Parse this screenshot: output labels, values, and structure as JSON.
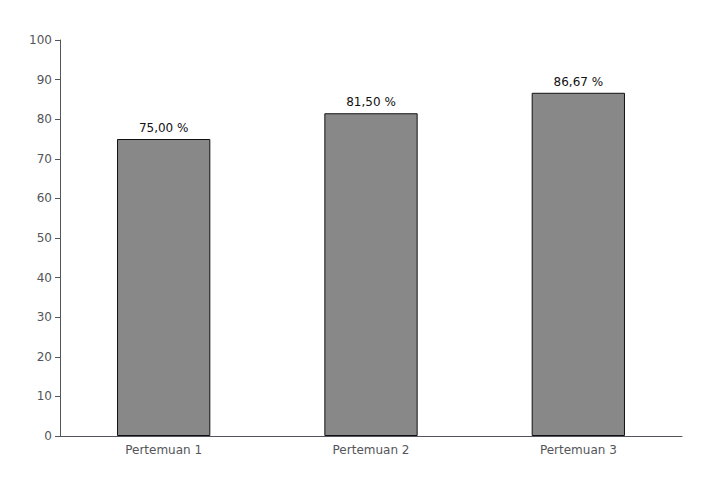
{
  "chart_data": {
    "type": "bar",
    "categories": [
      "Pertemuan 1",
      "Pertemuan 2",
      "Pertemuan 3"
    ],
    "values": [
      75.0,
      81.5,
      86.67
    ],
    "value_labels": [
      "75,00 %",
      "81,50 %",
      "86,67 %"
    ],
    "data_labels": true,
    "color": "#888888",
    "ylim": [
      0,
      100
    ],
    "yticks": [
      0,
      10,
      20,
      30,
      40,
      50,
      60,
      70,
      80,
      90,
      100
    ],
    "grid": false
  }
}
